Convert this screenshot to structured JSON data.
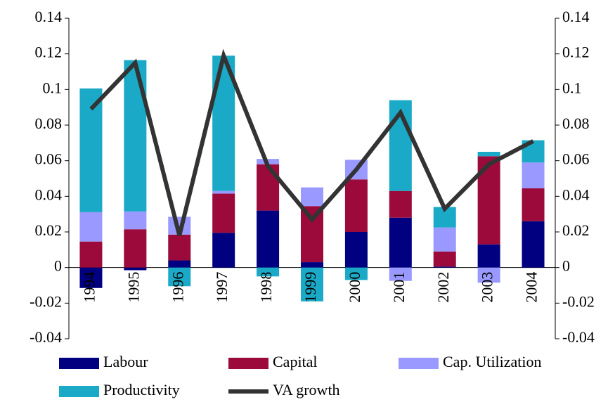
{
  "chart_data": {
    "type": "bar",
    "stacked": true,
    "categories": [
      "1994",
      "1995",
      "1996",
      "1997",
      "1998",
      "1999",
      "2000",
      "2001",
      "2002",
      "2003",
      "2004"
    ],
    "series": [
      {
        "name": "Labour",
        "type": "bar",
        "color": "#000080",
        "values": [
          -0.0115,
          -0.0015,
          0.004,
          0.0195,
          0.032,
          0.003,
          0.02,
          0.028,
          0.0005,
          0.013,
          0.026
        ]
      },
      {
        "name": "Capital",
        "type": "bar",
        "color": "#9b0a3b",
        "values": [
          0.0146,
          0.0215,
          0.0145,
          0.022,
          0.026,
          0.0315,
          0.0295,
          0.015,
          0.0085,
          0.0495,
          0.0185
        ]
      },
      {
        "name": "Cap. Utilization",
        "type": "bar",
        "color": "#9999ff",
        "values": [
          0.0165,
          0.01,
          0.01,
          0.0015,
          0.003,
          0.0105,
          0.011,
          -0.0075,
          0.0135,
          -0.0085,
          0.0145
        ]
      },
      {
        "name": "Productivity",
        "type": "bar",
        "color": "#1aa9c6",
        "values": [
          0.0695,
          0.085,
          -0.0105,
          0.076,
          -0.005,
          -0.019,
          -0.007,
          0.051,
          0.0115,
          0.0025,
          0.0125
        ]
      },
      {
        "name": "VA growth",
        "type": "line",
        "axis": "y2",
        "color": "#333333",
        "values": [
          0.089,
          0.115,
          0.018,
          0.119,
          0.057,
          0.027,
          0.055,
          0.087,
          0.033,
          0.058,
          0.071
        ]
      }
    ],
    "ylim": [
      -0.04,
      0.14
    ],
    "yticks": [
      -0.04,
      -0.02,
      0,
      0.02,
      0.04,
      0.06,
      0.08,
      0.1,
      0.12,
      0.14
    ],
    "y2lim": [
      -0.04,
      0.14
    ],
    "y2ticks": [
      -0.04,
      -0.02,
      0,
      0.02,
      0.04,
      0.06,
      0.08,
      0.1,
      0.12,
      0.14
    ],
    "grid": false,
    "legend": "bottom"
  }
}
